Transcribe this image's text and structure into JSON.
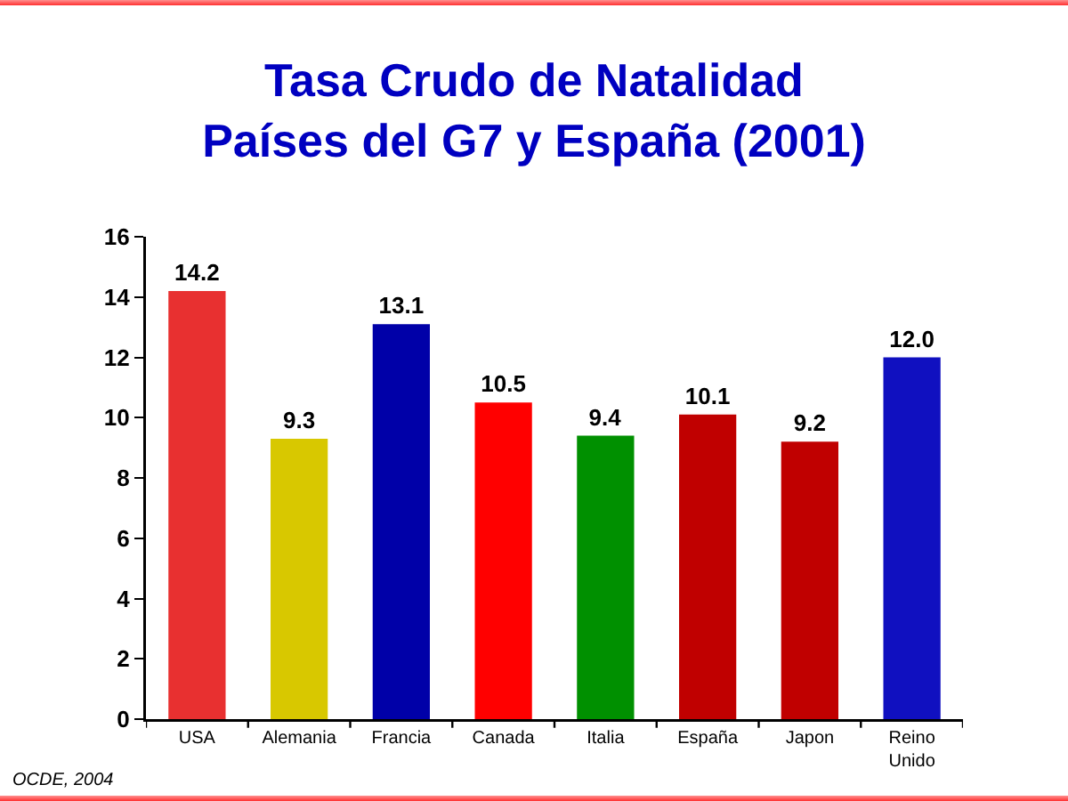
{
  "chart_data": {
    "type": "bar",
    "title": "Tasa Crudo de Natalidad\nPaíses del G7 y España (2001)",
    "categories": [
      "USA",
      "Alemania",
      "Francia",
      "Canada",
      "Italia",
      "España",
      "Japon",
      "Reino Unido"
    ],
    "values": [
      14.2,
      9.3,
      13.1,
      10.5,
      9.4,
      10.1,
      9.2,
      12.0
    ],
    "value_labels": [
      "14.2",
      "9.3",
      "13.1",
      "10.5",
      "9.4",
      "10.1",
      "9.2",
      "12.0"
    ],
    "colors": [
      "#e83030",
      "#d8c800",
      "#0000a8",
      "#ff0000",
      "#009000",
      "#c00000",
      "#c00000",
      "#1010c0"
    ],
    "ylim": [
      0,
      16
    ],
    "yticks": [
      0,
      2,
      4,
      6,
      8,
      10,
      12,
      14,
      16
    ],
    "grid": false,
    "annotations": [
      "OCDE, 2004"
    ]
  }
}
